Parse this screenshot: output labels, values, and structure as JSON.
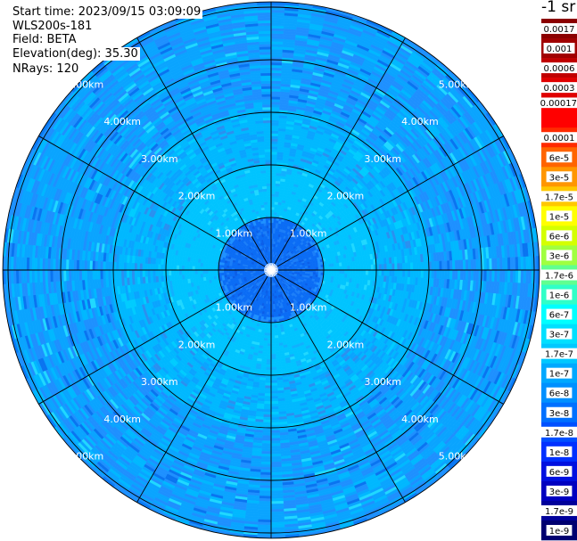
{
  "header": {
    "start_time": "Start time: 2023/09/15 03:09:09",
    "instrument": "WLS200s-181",
    "field": "Field: BETA",
    "elevation": "Elevation(deg): 35.30",
    "nrays": "NRays: 120"
  },
  "colorbar": {
    "unit": "-1 sr",
    "labels": [
      "0.0017",
      "0.001",
      "0.0006",
      "0.0003",
      "0.00017",
      "0.0001",
      "6e-5",
      "3e-5",
      "1.7e-5",
      "1e-5",
      "6e-6",
      "3e-6",
      "1.7e-6",
      "1e-6",
      "6e-7",
      "3e-7",
      "1.7e-7",
      "1e-7",
      "6e-8",
      "3e-8",
      "1.7e-8",
      "1e-8",
      "6e-9",
      "3e-9",
      "1.7e-9",
      "1e-9"
    ],
    "colors": [
      "#8b0000",
      "#a00000",
      "#c00000",
      "#e00000",
      "#ff0000",
      "#ff2a00",
      "#ff6400",
      "#ff9600",
      "#ffc800",
      "#ffff00",
      "#d4ff00",
      "#a0ff40",
      "#60ff90",
      "#30ffc8",
      "#00ffff",
      "#00e0ff",
      "#00c8ff",
      "#00a8ff",
      "#0090ff",
      "#0070ff",
      "#0050ff",
      "#0030ff",
      "#0010e0",
      "#0000c0",
      "#00009a",
      "#000070"
    ]
  },
  "chart_data": {
    "type": "heatmap",
    "projection": "polar (PPI)",
    "field": "BETA",
    "units": "-1 sr",
    "color_scale": "log",
    "range_rings_km": [
      1,
      2,
      3,
      4,
      5
    ],
    "range_ring_labels": [
      "1.00km",
      "2.00km",
      "3.00km",
      "4.00km",
      "5.00km"
    ],
    "max_range_km": 5.1,
    "azimuth_lines_deg": [
      0,
      30,
      60,
      90,
      120,
      150,
      180,
      210,
      240,
      270,
      300,
      330
    ],
    "nrays": 120,
    "value_by_range": [
      {
        "range_km": [
          0.0,
          1.0
        ],
        "beta_approx": "1e-7 to 3e-8"
      },
      {
        "range_km": [
          1.0,
          2.0
        ],
        "beta_approx": "3e-7"
      },
      {
        "range_km": [
          2.0,
          3.0
        ],
        "beta_approx": "3e-7 to 1.7e-7"
      },
      {
        "range_km": [
          3.0,
          5.0
        ],
        "beta_approx": "1.7e-7 to 1e-7"
      },
      {
        "range_km": [
          5.0,
          5.1
        ],
        "beta_approx": "1e-7 to 6e-8"
      }
    ]
  }
}
